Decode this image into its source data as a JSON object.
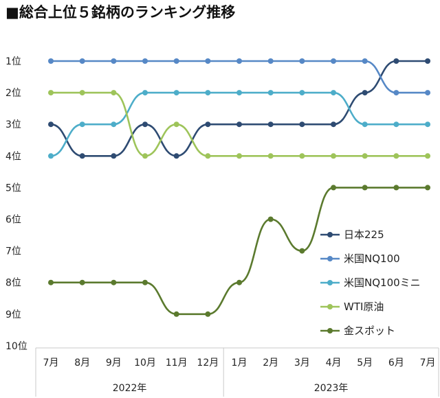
{
  "chart_data": {
    "type": "line",
    "title": "■総合上位５銘柄のランキング推移",
    "categories": [
      "7月",
      "8月",
      "9月",
      "10月",
      "11月",
      "12月",
      "1月",
      "2月",
      "3月",
      "4月",
      "5月",
      "6月",
      "7月"
    ],
    "year_groups": [
      {
        "label": "2022年",
        "span": 6
      },
      {
        "label": "2023年",
        "span": 7
      }
    ],
    "y_ticks": [
      "1位",
      "2位",
      "3位",
      "4位",
      "5位",
      "6位",
      "7位",
      "8位",
      "9位",
      "10位"
    ],
    "ylim": [
      1,
      10
    ],
    "y_reversed": true,
    "series": [
      {
        "name": "日本225",
        "color": "#2e4b72",
        "values": [
          3,
          4,
          4,
          3,
          4,
          3,
          3,
          3,
          3,
          3,
          2,
          1,
          1
        ]
      },
      {
        "name": "米国NQ100",
        "color": "#5688c6",
        "values": [
          1,
          1,
          1,
          1,
          1,
          1,
          1,
          1,
          1,
          1,
          1,
          2,
          2
        ]
      },
      {
        "name": "米国NQ100ミニ",
        "color": "#4dadc9",
        "values": [
          4,
          3,
          3,
          2,
          2,
          2,
          2,
          2,
          2,
          2,
          3,
          3,
          3
        ]
      },
      {
        "name": "WTI原油",
        "color": "#9ec45a",
        "values": [
          2,
          2,
          2,
          4,
          3,
          4,
          4,
          4,
          4,
          4,
          4,
          4,
          4
        ]
      },
      {
        "name": "金スポット",
        "color": "#5b7a2e",
        "values": [
          8,
          8,
          8,
          8,
          9,
          9,
          8,
          6,
          7,
          5,
          5,
          5,
          5
        ]
      }
    ],
    "legend_position": "right"
  }
}
